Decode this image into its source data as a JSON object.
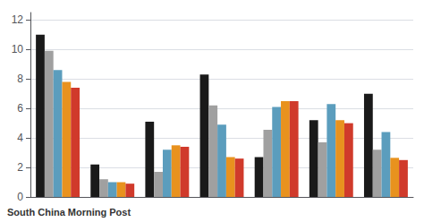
{
  "chart_data": {
    "type": "bar",
    "annotations": [
      "South China Morning Post"
    ],
    "categories": [
      null,
      null,
      null,
      null,
      null,
      null,
      null
    ],
    "series": [
      {
        "color": "#1a1a1a",
        "values": [
          11.0,
          2.2,
          5.1,
          8.3,
          2.7,
          5.2,
          7.0
        ]
      },
      {
        "color": "#a0a0a0",
        "values": [
          9.9,
          1.2,
          1.7,
          6.2,
          4.55,
          3.7,
          3.2
        ]
      },
      {
        "color": "#5b9dbd",
        "values": [
          8.6,
          1.0,
          3.2,
          4.9,
          6.1,
          6.3,
          4.4
        ]
      },
      {
        "color": "#e8921e",
        "values": [
          7.8,
          1.0,
          3.5,
          2.7,
          6.5,
          5.2,
          2.65
        ]
      },
      {
        "color": "#d03a2b",
        "values": [
          7.4,
          0.9,
          3.4,
          2.6,
          6.5,
          5.0,
          2.5
        ]
      }
    ],
    "ylim": [
      0,
      12.5
    ],
    "yticks": [
      0,
      2,
      4,
      6,
      8,
      10,
      12
    ],
    "grid": true,
    "tick_labels": "y"
  }
}
